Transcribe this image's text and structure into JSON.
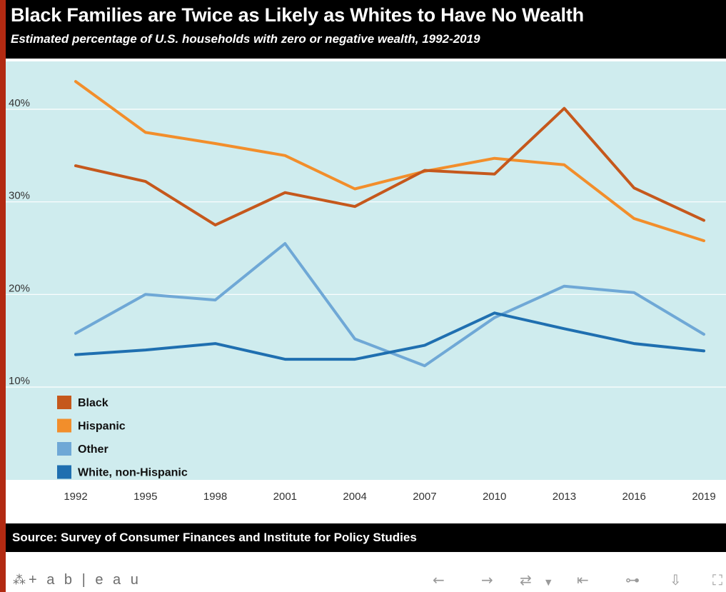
{
  "header": {
    "title": "Black Families are Twice as Likely as Whites to Have No Wealth",
    "subtitle": "Estimated percentage of U.S. households with zero or negative wealth, 1992-2019"
  },
  "footer": {
    "source": "Source: Survey of Consumer Finances and Institute for Policy Studies"
  },
  "toolbar": {
    "brand_mark": "⁂",
    "brand": "+ a b | e a u",
    "icons": [
      "undo-icon",
      "redo-icon",
      "revert-icon",
      "dropdown-icon",
      "reset-icon",
      "share-icon",
      "download-icon",
      "fullscreen-icon"
    ]
  },
  "colors": {
    "plot_background": "#cfecee",
    "Black": "#c5581c",
    "Hispanic": "#f28e2b",
    "Other": "#6fa8d6",
    "White, non-Hispanic": "#1f6fb0"
  },
  "chart_data": {
    "type": "line",
    "title": "Black Families are Twice as Likely as Whites to Have No Wealth",
    "subtitle": "Estimated percentage of U.S. households with zero or negative wealth, 1992-2019",
    "x": [
      "1992",
      "1995",
      "1998",
      "2001",
      "2004",
      "2007",
      "2010",
      "2013",
      "2016",
      "2019"
    ],
    "ylim": [
      0,
      45
    ],
    "yticks": [
      10,
      20,
      30,
      40
    ],
    "ytick_labels": [
      "10%",
      "20%",
      "30%",
      "40%"
    ],
    "grid": true,
    "legend_position": "bottom-left",
    "series": [
      {
        "name": "Black",
        "values": [
          33.9,
          32.2,
          27.5,
          31.0,
          29.5,
          33.4,
          33.0,
          40.1,
          31.5,
          28.0
        ]
      },
      {
        "name": "Hispanic",
        "values": [
          43.0,
          37.5,
          36.3,
          35.0,
          31.4,
          33.3,
          34.7,
          34.0,
          28.2,
          25.8
        ]
      },
      {
        "name": "Other",
        "values": [
          15.8,
          20.0,
          19.4,
          25.5,
          15.2,
          12.3,
          17.5,
          20.9,
          20.2,
          15.7
        ]
      },
      {
        "name": "White, non-Hispanic",
        "values": [
          13.5,
          14.0,
          14.7,
          13.0,
          13.0,
          14.5,
          18.0,
          16.3,
          14.7,
          13.9
        ]
      }
    ],
    "source": "Source: Survey of Consumer Finances and Institute for Policy Studies"
  }
}
